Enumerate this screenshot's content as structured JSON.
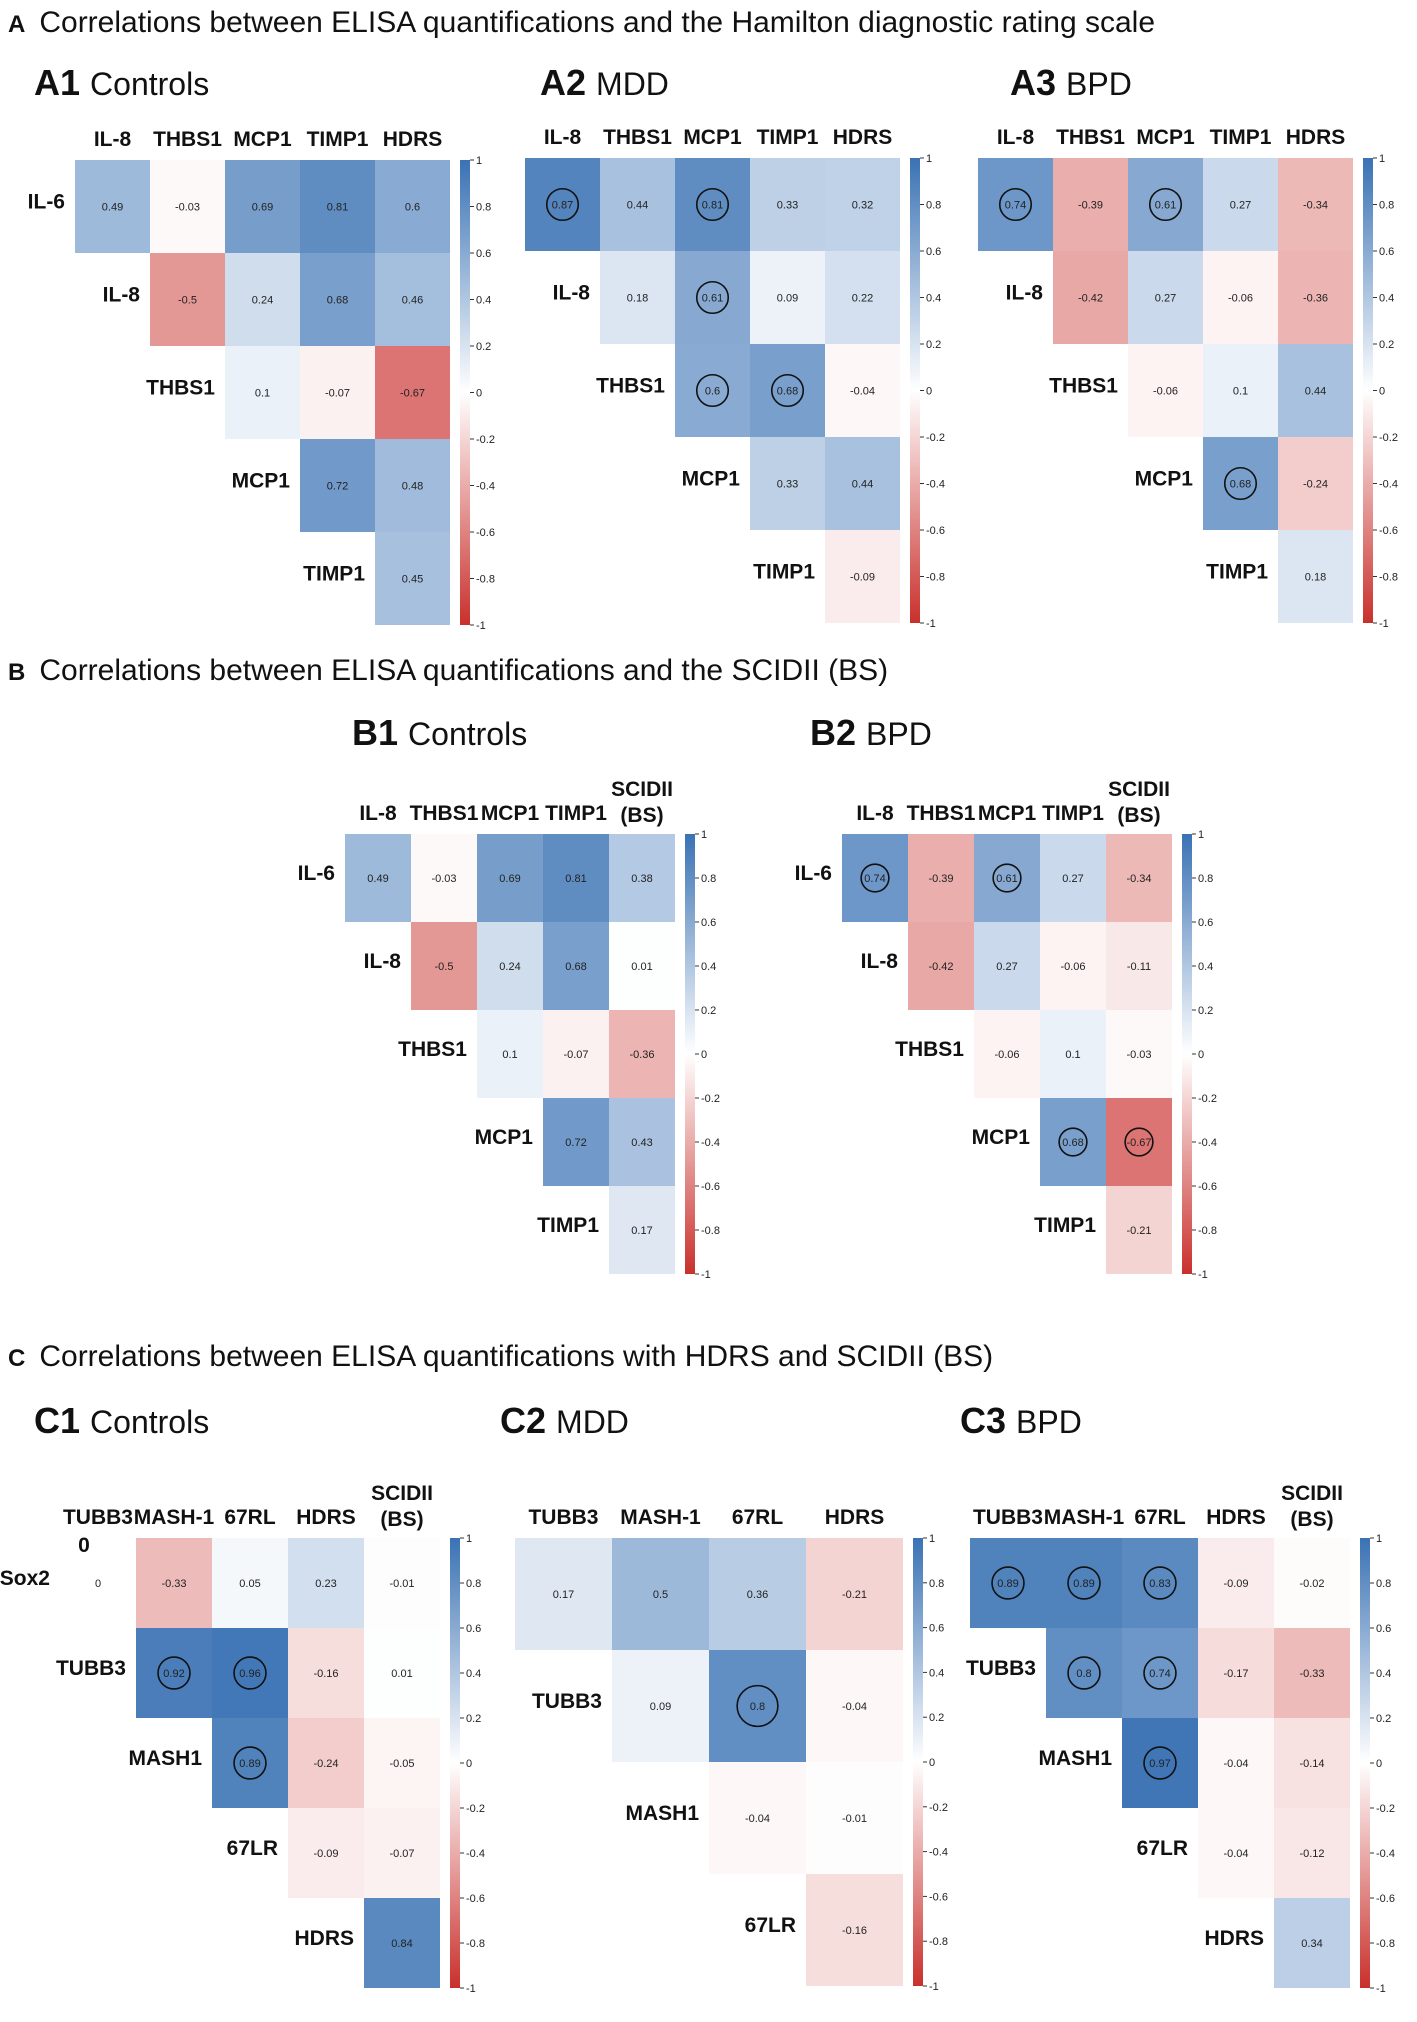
{
  "sections": [
    {
      "letter": "A",
      "title": "Correlations between ELISA quantifications and the Hamilton diagnostic rating scale"
    },
    {
      "letter": "B",
      "title": "Correlations between ELISA quantifications and the SCIDII (BS)"
    },
    {
      "letter": "C",
      "title": "Correlations between ELISA quantifications with HDRS and SCIDII (BS)"
    }
  ],
  "panels": [
    {
      "id": "A1",
      "label": "Controls"
    },
    {
      "id": "A2",
      "label": "MDD"
    },
    {
      "id": "A3",
      "label": "BPD"
    },
    {
      "id": "B1",
      "label": "Controls"
    },
    {
      "id": "B2",
      "label": "BPD"
    },
    {
      "id": "C1",
      "label": "Controls"
    },
    {
      "id": "C2",
      "label": "MDD"
    },
    {
      "id": "C3",
      "label": "BPD"
    }
  ],
  "colors": {
    "positive": "#3a72b4",
    "negative": "#c9302c",
    "neutral": "#ffffff"
  },
  "chart_data": [
    {
      "id": "A1",
      "type": "heatmap",
      "title": "A1 Controls",
      "cols": [
        "IL-8",
        "THBS1",
        "MCP1",
        "TIMP1",
        "HDRS"
      ],
      "rows": [
        "IL-6",
        "IL-8",
        "THBS1",
        "MCP1",
        "TIMP1"
      ],
      "values": [
        [
          0.49,
          -0.03,
          0.69,
          0.81,
          0.6
        ],
        [
          null,
          -0.5,
          0.24,
          0.68,
          0.46
        ],
        [
          null,
          null,
          0.1,
          -0.07,
          -0.67
        ],
        [
          null,
          null,
          null,
          0.72,
          0.48
        ],
        [
          null,
          null,
          null,
          null,
          0.45
        ]
      ],
      "circled": [],
      "colorbar": {
        "range": [
          -1,
          1
        ],
        "ticks": [
          "1",
          "0.8",
          "0.6",
          "0.4",
          "0.2",
          "0",
          "-0.2",
          "-0.4",
          "-0.6",
          "-0.8",
          "-1"
        ]
      }
    },
    {
      "id": "A2",
      "type": "heatmap",
      "title": "A2 MDD",
      "cols": [
        "IL-8",
        "THBS1",
        "MCP1",
        "TIMP1",
        "HDRS"
      ],
      "rows": [
        "",
        "IL-8",
        "THBS1",
        "MCP1",
        "TIMP1"
      ],
      "values": [
        [
          0.87,
          0.44,
          0.81,
          0.33,
          0.32
        ],
        [
          null,
          0.18,
          0.61,
          0.09,
          0.22
        ],
        [
          null,
          null,
          0.6,
          0.68,
          -0.04
        ],
        [
          null,
          null,
          null,
          0.33,
          0.44
        ],
        [
          null,
          null,
          null,
          null,
          -0.09
        ]
      ],
      "circled": [
        [
          0,
          0
        ],
        [
          0,
          2
        ],
        [
          1,
          2
        ],
        [
          2,
          2
        ],
        [
          2,
          3
        ]
      ],
      "colorbar": {
        "range": [
          -1,
          1
        ],
        "ticks": [
          "1",
          "0.8",
          "0.6",
          "0.4",
          "0.2",
          "0",
          "-0.2",
          "-0.4",
          "-0.6",
          "-0.8",
          "-1"
        ]
      }
    },
    {
      "id": "A3",
      "type": "heatmap",
      "title": "A3 BPD",
      "cols": [
        "IL-8",
        "THBS1",
        "MCP1",
        "TIMP1",
        "HDRS"
      ],
      "rows": [
        "",
        "IL-8",
        "THBS1",
        "MCP1",
        "TIMP1"
      ],
      "values": [
        [
          0.74,
          -0.39,
          0.61,
          0.27,
          -0.34
        ],
        [
          null,
          -0.42,
          0.27,
          -0.06,
          -0.36
        ],
        [
          null,
          null,
          -0.06,
          0.1,
          0.44
        ],
        [
          null,
          null,
          null,
          0.68,
          -0.24
        ],
        [
          null,
          null,
          null,
          null,
          0.18
        ]
      ],
      "circled": [
        [
          0,
          0
        ],
        [
          0,
          2
        ],
        [
          3,
          3
        ]
      ],
      "colorbar": {
        "range": [
          -1,
          1
        ],
        "ticks": [
          "1",
          "0.8",
          "0.6",
          "0.4",
          "0.2",
          "0",
          "-0.2",
          "-0.4",
          "-0.6",
          "-0.8",
          "-1"
        ]
      }
    },
    {
      "id": "B1",
      "type": "heatmap",
      "title": "B1 Controls",
      "cols": [
        "IL-8",
        "THBS1",
        "MCP1",
        "TIMP1",
        "SCIDII (BS)"
      ],
      "rows": [
        "IL-6",
        "IL-8",
        "THBS1",
        "MCP1",
        "TIMP1"
      ],
      "values": [
        [
          0.49,
          -0.03,
          0.69,
          0.81,
          0.38
        ],
        [
          null,
          -0.5,
          0.24,
          0.68,
          0.01
        ],
        [
          null,
          null,
          0.1,
          -0.07,
          -0.36
        ],
        [
          null,
          null,
          null,
          0.72,
          0.43
        ],
        [
          null,
          null,
          null,
          null,
          0.17
        ]
      ],
      "circled": [],
      "colorbar": {
        "range": [
          -1,
          1
        ],
        "ticks": [
          "1",
          "0.8",
          "0.6",
          "0.4",
          "0.2",
          "0",
          "-0.2",
          "-0.4",
          "-0.6",
          "-0.8",
          "-1"
        ]
      }
    },
    {
      "id": "B2",
      "type": "heatmap",
      "title": "B2 BPD",
      "cols": [
        "IL-8",
        "THBS1",
        "MCP1",
        "TIMP1",
        "SCIDII (BS)"
      ],
      "rows": [
        "IL-6",
        "IL-8",
        "THBS1",
        "MCP1",
        "TIMP1"
      ],
      "values": [
        [
          0.74,
          -0.39,
          0.61,
          0.27,
          -0.34
        ],
        [
          null,
          -0.42,
          0.27,
          -0.06,
          -0.11
        ],
        [
          null,
          null,
          -0.06,
          0.1,
          -0.03
        ],
        [
          null,
          null,
          null,
          0.68,
          -0.67
        ],
        [
          null,
          null,
          null,
          null,
          -0.21
        ]
      ],
      "circled": [
        [
          0,
          0
        ],
        [
          0,
          2
        ],
        [
          3,
          3
        ],
        [
          3,
          4
        ]
      ],
      "colorbar": {
        "range": [
          -1,
          1
        ],
        "ticks": [
          "1",
          "0.8",
          "0.6",
          "0.4",
          "0.2",
          "0",
          "-0.2",
          "-0.4",
          "-0.6",
          "-0.8",
          "-1"
        ]
      }
    },
    {
      "id": "C1",
      "type": "heatmap",
      "title": "C1 Controls",
      "cols": [
        "TUBB3",
        "MASH-1",
        "67RL",
        "HDRS",
        "SCIDII (BS)"
      ],
      "rows": [
        "Sox2",
        "TUBB3",
        "MASH1",
        "67LR",
        "HDRS"
      ],
      "values": [
        [
          0,
          -0.33,
          0.05,
          0.23,
          -0.01
        ],
        [
          null,
          0.92,
          0.96,
          -0.16,
          0.01
        ],
        [
          null,
          null,
          0.89,
          -0.24,
          -0.05
        ],
        [
          null,
          null,
          null,
          -0.09,
          -0.07
        ],
        [
          null,
          null,
          null,
          null,
          0.84
        ]
      ],
      "circled": [
        [
          1,
          1
        ],
        [
          1,
          2
        ],
        [
          2,
          2
        ]
      ],
      "extra_label": "0",
      "colorbar": {
        "range": [
          -1,
          1
        ],
        "ticks": [
          "1",
          "0.8",
          "0.6",
          "0.4",
          "0.2",
          "0",
          "-0.2",
          "-0.4",
          "-0.6",
          "-0.8",
          "-1"
        ]
      }
    },
    {
      "id": "C2",
      "type": "heatmap",
      "title": "C2 MDD",
      "cols": [
        "TUBB3",
        "MASH-1",
        "67RL",
        "HDRS"
      ],
      "rows": [
        "",
        "TUBB3",
        "MASH1",
        "67LR"
      ],
      "values": [
        [
          0.17,
          0.5,
          0.36,
          -0.21
        ],
        [
          null,
          0.09,
          0.8,
          -0.04
        ],
        [
          null,
          null,
          -0.04,
          -0.01
        ],
        [
          null,
          null,
          null,
          -0.16
        ]
      ],
      "circled": [
        [
          1,
          2
        ]
      ],
      "colorbar": {
        "range": [
          -1,
          1
        ],
        "ticks": [
          "1",
          "0.8",
          "0.6",
          "0.4",
          "0.2",
          "0",
          "-0.2",
          "-0.4",
          "-0.6",
          "-0.8",
          "-1"
        ]
      }
    },
    {
      "id": "C3",
      "type": "heatmap",
      "title": "C3 BPD",
      "cols": [
        "TUBB3",
        "MASH-1",
        "67RL",
        "HDRS",
        "SCIDII (BS)"
      ],
      "rows": [
        "",
        "TUBB3",
        "MASH1",
        "67LR",
        "HDRS"
      ],
      "values": [
        [
          0.89,
          0.89,
          0.83,
          -0.09,
          -0.02
        ],
        [
          null,
          0.8,
          0.74,
          -0.17,
          -0.33
        ],
        [
          null,
          null,
          0.97,
          -0.04,
          -0.14
        ],
        [
          null,
          null,
          null,
          -0.04,
          -0.12
        ],
        [
          null,
          null,
          null,
          null,
          0.34
        ]
      ],
      "circled": [
        [
          0,
          0
        ],
        [
          0,
          1
        ],
        [
          0,
          2
        ],
        [
          1,
          1
        ],
        [
          1,
          2
        ],
        [
          2,
          2
        ]
      ],
      "colorbar": {
        "range": [
          -1,
          1
        ],
        "ticks": [
          "1",
          "0.8",
          "0.6",
          "0.4",
          "0.2",
          "0",
          "-0.2",
          "-0.4",
          "-0.6",
          "-0.8",
          "-1"
        ]
      }
    }
  ]
}
